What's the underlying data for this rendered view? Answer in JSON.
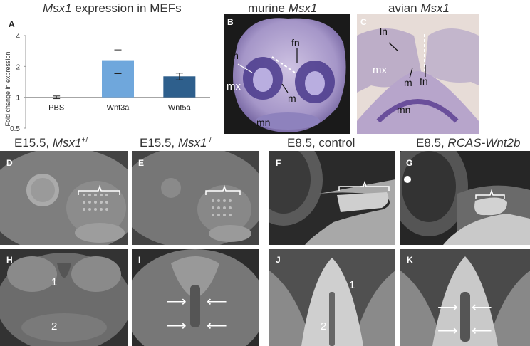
{
  "figure": {
    "A": {
      "panel_letter": "A",
      "title_italic": "Msx1",
      "title_rest": " expression in MEFs"
    },
    "B": {
      "panel_letter": "B",
      "title_plain": "murine ",
      "title_italic": "Msx1",
      "labels": {
        "fn": "fn",
        "ln": "ln",
        "mx": "mx",
        "m": "m",
        "mn": "mn"
      }
    },
    "C": {
      "panel_letter": "C",
      "title_plain": "avian ",
      "title_italic": "Msx1",
      "labels": {
        "ln": "ln",
        "mx": "mx",
        "m": "m",
        "fn": "fn",
        "mn": "mn"
      }
    },
    "row2": {
      "D": {
        "panel_letter": "D",
        "title_plain": "E15.5, ",
        "title_italic": "Msx1",
        "title_sup": "+/-"
      },
      "E": {
        "panel_letter": "E",
        "title_plain": "E15.5, ",
        "title_italic": "Msx1",
        "title_sup": "-/-"
      },
      "F": {
        "panel_letter": "F",
        "title_plain": "E8.5, control"
      },
      "G": {
        "panel_letter": "G",
        "title_plain": "E8.5, ",
        "title_italic": "RCAS-Wnt2b"
      }
    },
    "row3": {
      "H": {
        "panel_letter": "H",
        "n1": "1",
        "n2": "2"
      },
      "I": {
        "panel_letter": "I"
      },
      "J": {
        "panel_letter": "J",
        "n1": "1",
        "n2": "2"
      },
      "K": {
        "panel_letter": "K"
      }
    }
  },
  "chart_data": {
    "type": "bar",
    "categories": [
      "PBS",
      "Wnt3a",
      "Wnt5a"
    ],
    "values": [
      1.0,
      2.3,
      1.6
    ],
    "errors": [
      0.03,
      0.6,
      0.12
    ],
    "colors": [
      "#6a6a6a",
      "#6fa7dc",
      "#2e5f8c"
    ],
    "ylabel": "Fold change in expression",
    "yscale": "log2",
    "ylim": [
      0.5,
      4
    ],
    "yticks": [
      "4",
      "2",
      "1",
      "0.5"
    ],
    "ytick_values": [
      4,
      2,
      1,
      0.5
    ],
    "grid": false,
    "legend": "none"
  }
}
